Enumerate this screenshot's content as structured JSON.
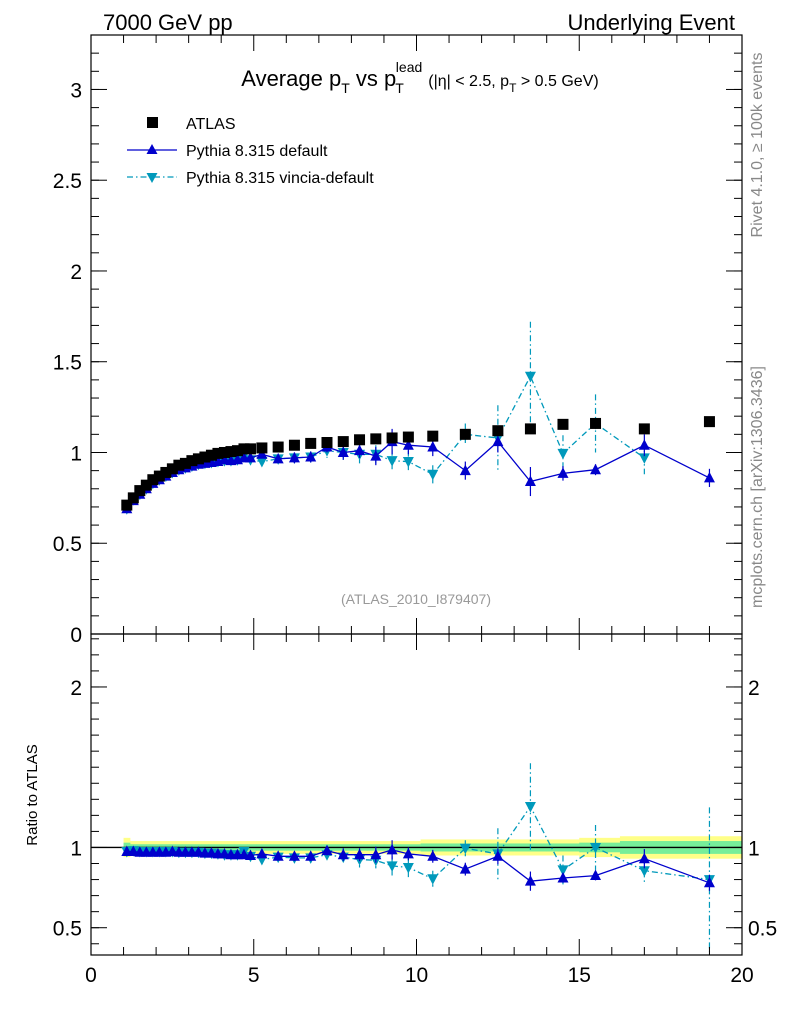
{
  "header": {
    "left": "7000 GeV pp",
    "right": "Underlying Event"
  },
  "side_labels": {
    "top": "Rivet 4.1.0, ≥ 100k events",
    "bottom": "mcplots.cern.ch [arXiv:1306.3436]"
  },
  "title": {
    "main": "Average p",
    "sub_T1": "T",
    "vs": " vs p",
    "sub_T2": "T",
    "sup_lead": "lead",
    "cut": "(|η| < 2.5, p",
    "cut_sub": "T",
    "cut_end": " > 0.5 GeV)"
  },
  "watermark": "(ATLAS_2010_I879407)",
  "colors": {
    "atlas": "#000000",
    "default": "#0000cc",
    "vincia": "#0099bb",
    "band_yellow": "#ffff88",
    "band_green": "#77ee99"
  },
  "chart_data": [
    {
      "type": "scatter",
      "panel": "main",
      "xlim": [
        0,
        20
      ],
      "ylim": [
        0,
        3.3
      ],
      "yticks": [
        "0",
        "0.5",
        "1",
        "1.5",
        "2",
        "2.5",
        "3"
      ],
      "ytick_values": [
        0,
        0.5,
        1,
        1.5,
        2,
        2.5,
        3
      ],
      "legend": [
        "ATLAS",
        "Pythia 8.315 default",
        "Pythia 8.315 vincia-default"
      ],
      "x": [
        1.1,
        1.3,
        1.5,
        1.7,
        1.9,
        2.1,
        2.3,
        2.5,
        2.7,
        2.9,
        3.1,
        3.3,
        3.5,
        3.7,
        3.9,
        4.1,
        4.3,
        4.5,
        4.7,
        4.9,
        5.25,
        5.75,
        6.25,
        6.75,
        7.25,
        7.75,
        8.25,
        8.75,
        9.25,
        9.75,
        10.5,
        11.5,
        12.5,
        13.5,
        14.5,
        15.5,
        17.0,
        19.0
      ],
      "series": [
        {
          "name": "ATLAS",
          "marker": "square",
          "values": [
            0.71,
            0.75,
            0.79,
            0.82,
            0.85,
            0.87,
            0.89,
            0.91,
            0.93,
            0.94,
            0.955,
            0.965,
            0.975,
            0.985,
            0.995,
            1.0,
            1.005,
            1.01,
            1.02,
            1.02,
            1.025,
            1.03,
            1.04,
            1.05,
            1.055,
            1.06,
            1.07,
            1.075,
            1.08,
            1.085,
            1.09,
            1.1,
            1.12,
            1.13,
            1.155,
            1.16,
            1.13,
            1.17
          ],
          "errors": [
            0,
            0,
            0,
            0,
            0,
            0,
            0,
            0,
            0,
            0,
            0,
            0,
            0,
            0,
            0,
            0,
            0,
            0,
            0,
            0,
            0,
            0,
            0,
            0,
            0,
            0,
            0,
            0,
            0,
            0,
            0,
            0,
            0,
            0,
            0,
            0,
            0,
            0
          ]
        },
        {
          "name": "Pythia 8.315 default",
          "marker": "triangle-up",
          "values": [
            0.69,
            0.735,
            0.77,
            0.8,
            0.83,
            0.85,
            0.87,
            0.89,
            0.905,
            0.915,
            0.925,
            0.935,
            0.94,
            0.945,
            0.95,
            0.96,
            0.955,
            0.96,
            0.97,
            0.97,
            0.99,
            0.965,
            0.97,
            0.975,
            1.03,
            1.0,
            1.01,
            0.98,
            1.06,
            1.04,
            1.03,
            0.9,
            1.06,
            0.84,
            0.885,
            0.905,
            1.04,
            0.86
          ],
          "errors": [
            0.01,
            0.01,
            0.01,
            0.01,
            0.01,
            0.01,
            0.01,
            0.01,
            0.01,
            0.01,
            0.01,
            0.01,
            0.01,
            0.01,
            0.01,
            0.01,
            0.01,
            0.02,
            0.02,
            0.02,
            0.02,
            0.02,
            0.03,
            0.03,
            0.03,
            0.04,
            0.04,
            0.05,
            0.07,
            0.05,
            0.05,
            0.05,
            0.06,
            0.08,
            0.04,
            0.03,
            0.06,
            0.05
          ]
        },
        {
          "name": "Pythia 8.315 vincia-default",
          "marker": "triangle-down",
          "values": [
            0.69,
            0.74,
            0.77,
            0.8,
            0.83,
            0.85,
            0.87,
            0.89,
            0.905,
            0.915,
            0.925,
            0.935,
            0.94,
            0.945,
            0.95,
            0.955,
            0.955,
            0.96,
            0.985,
            0.96,
            0.95,
            0.965,
            0.97,
            0.975,
            1.01,
            1.0,
            0.99,
            0.99,
            0.955,
            0.95,
            0.88,
            1.1,
            1.08,
            1.42,
            0.995,
            1.16,
            0.97,
            null
          ],
          "errors": [
            0.01,
            0.01,
            0.01,
            0.01,
            0.01,
            0.01,
            0.01,
            0.01,
            0.01,
            0.01,
            0.01,
            0.01,
            0.01,
            0.01,
            0.01,
            0.01,
            0.01,
            0.02,
            0.02,
            0.02,
            0.02,
            0.02,
            0.03,
            0.03,
            0.04,
            0.04,
            0.05,
            0.05,
            0.06,
            0.06,
            0.05,
            0.06,
            0.18,
            0.3,
            0.1,
            0.16,
            0.09,
            0
          ]
        }
      ]
    },
    {
      "type": "scatter",
      "panel": "ratio",
      "xlabel": "",
      "ylabel": "Ratio to ATLAS",
      "xlim": [
        0,
        20
      ],
      "ylim": [
        0.33,
        2.33
      ],
      "xticks": [
        "0",
        "5",
        "10",
        "15",
        "20"
      ],
      "xtick_values": [
        0,
        5,
        10,
        15,
        20
      ],
      "yticks": [
        "0.5",
        "1",
        "2"
      ],
      "ytick_values": [
        0.5,
        1,
        2
      ],
      "x": [
        1.1,
        1.3,
        1.5,
        1.7,
        1.9,
        2.1,
        2.3,
        2.5,
        2.7,
        2.9,
        3.1,
        3.3,
        3.5,
        3.7,
        3.9,
        4.1,
        4.3,
        4.5,
        4.7,
        4.9,
        5.25,
        5.75,
        6.25,
        6.75,
        7.25,
        7.75,
        8.25,
        8.75,
        9.25,
        9.75,
        10.5,
        11.5,
        12.5,
        13.5,
        14.5,
        15.5,
        17.0,
        19.0
      ],
      "band_yellow_halfwidth": [
        0.06,
        0.04,
        0.04,
        0.04,
        0.04,
        0.04,
        0.04,
        0.04,
        0.04,
        0.04,
        0.04,
        0.04,
        0.04,
        0.04,
        0.04,
        0.04,
        0.04,
        0.04,
        0.04,
        0.04,
        0.04,
        0.04,
        0.04,
        0.04,
        0.04,
        0.04,
        0.04,
        0.04,
        0.04,
        0.04,
        0.05,
        0.05,
        0.05,
        0.05,
        0.05,
        0.06,
        0.07,
        0.07
      ],
      "band_green_halfwidth": [
        0.03,
        0.02,
        0.02,
        0.02,
        0.02,
        0.02,
        0.02,
        0.02,
        0.02,
        0.02,
        0.02,
        0.02,
        0.02,
        0.02,
        0.02,
        0.02,
        0.02,
        0.02,
        0.02,
        0.02,
        0.02,
        0.02,
        0.02,
        0.02,
        0.02,
        0.02,
        0.02,
        0.02,
        0.02,
        0.02,
        0.025,
        0.025,
        0.025,
        0.025,
        0.025,
        0.03,
        0.04,
        0.04
      ],
      "series": [
        {
          "name": "Pythia 8.315 default",
          "marker": "triangle-up",
          "values": [
            0.975,
            0.975,
            0.97,
            0.97,
            0.97,
            0.97,
            0.97,
            0.975,
            0.97,
            0.97,
            0.97,
            0.97,
            0.965,
            0.965,
            0.96,
            0.96,
            0.955,
            0.955,
            0.955,
            0.95,
            0.96,
            0.945,
            0.945,
            0.945,
            0.98,
            0.955,
            0.955,
            0.955,
            0.985,
            0.96,
            0.945,
            0.865,
            0.945,
            0.79,
            0.81,
            0.825,
            0.93,
            0.78
          ],
          "errors": [
            0.01,
            0.01,
            0.01,
            0.01,
            0.01,
            0.01,
            0.01,
            0.01,
            0.01,
            0.01,
            0.01,
            0.01,
            0.01,
            0.01,
            0.01,
            0.01,
            0.01,
            0.02,
            0.02,
            0.02,
            0.02,
            0.02,
            0.03,
            0.03,
            0.03,
            0.04,
            0.04,
            0.05,
            0.06,
            0.04,
            0.04,
            0.04,
            0.05,
            0.06,
            0.03,
            0.03,
            0.06,
            0.05
          ]
        },
        {
          "name": "Pythia 8.315 vincia-default",
          "marker": "triangle-down",
          "values": [
            0.975,
            0.98,
            0.975,
            0.975,
            0.975,
            0.975,
            0.975,
            0.975,
            0.97,
            0.97,
            0.97,
            0.97,
            0.965,
            0.965,
            0.96,
            0.955,
            0.955,
            0.955,
            0.975,
            0.945,
            0.925,
            0.94,
            0.935,
            0.935,
            0.955,
            0.94,
            0.925,
            0.92,
            0.885,
            0.875,
            0.805,
            0.995,
            0.96,
            1.255,
            0.86,
            1.0,
            0.855,
            0.8
          ],
          "errors": [
            0.01,
            0.01,
            0.01,
            0.01,
            0.01,
            0.01,
            0.01,
            0.01,
            0.01,
            0.01,
            0.01,
            0.01,
            0.01,
            0.01,
            0.01,
            0.01,
            0.01,
            0.02,
            0.02,
            0.02,
            0.02,
            0.02,
            0.03,
            0.03,
            0.04,
            0.04,
            0.05,
            0.05,
            0.06,
            0.06,
            0.05,
            0.05,
            0.16,
            0.27,
            0.09,
            0.14,
            0.08,
            0.45
          ]
        }
      ]
    }
  ]
}
